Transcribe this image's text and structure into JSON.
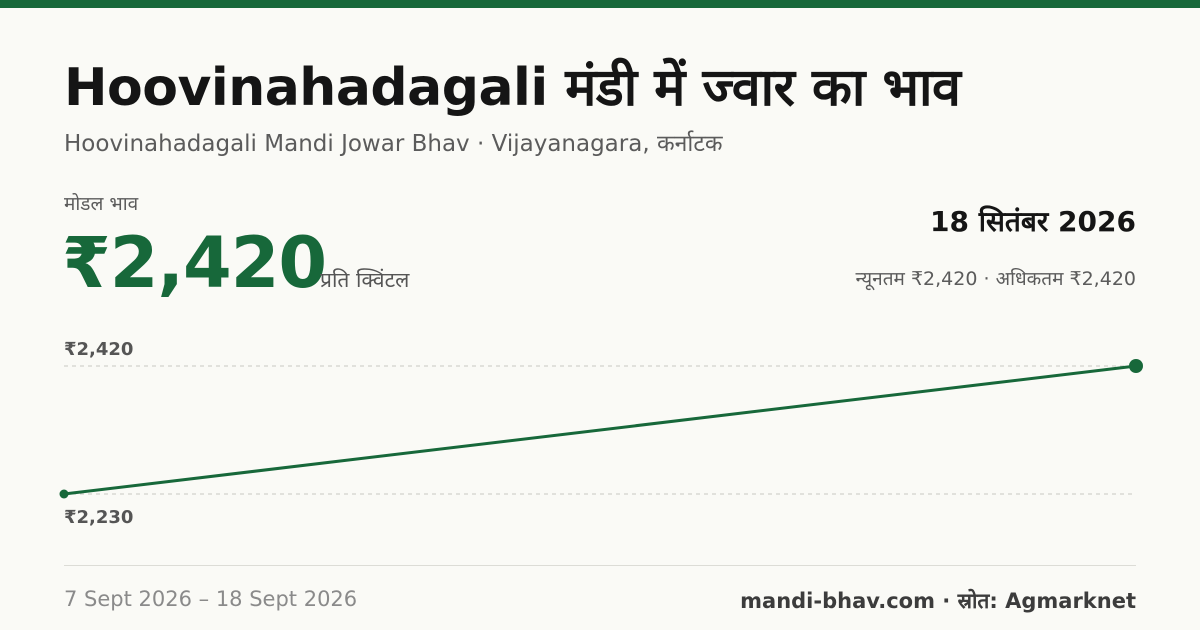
{
  "header": {
    "title": "Hoovinahadagali मंडी में ज्वार का भाव",
    "subtitle": "Hoovinahadagali Mandi Jowar Bhav · Vijayanagara, कर्नाटक"
  },
  "price": {
    "label": "मोडल भाव",
    "value": "₹2,420",
    "unit": "प्रति क्विंटल"
  },
  "date": "18 सितंबर 2026",
  "range": {
    "min_text": "न्यूनतम ₹2,420",
    "separator": " · ",
    "max_text": "अधिकतम ₹2,420"
  },
  "chart_data": {
    "type": "line",
    "x": [
      "7 Sept 2026",
      "18 Sept 2026"
    ],
    "series": [
      {
        "values": [
          2230,
          2420
        ]
      }
    ],
    "ylim": [
      2230,
      2420
    ],
    "y_tick_labels": [
      "₹2,420",
      "₹2,230"
    ],
    "grid": true,
    "color": "#17683a"
  },
  "footer": {
    "period": "7 Sept 2026 – 18 Sept 2026",
    "site": "mandi-bhav.com",
    "separator": " · ",
    "source": "स्रोत: Agmarknet"
  }
}
